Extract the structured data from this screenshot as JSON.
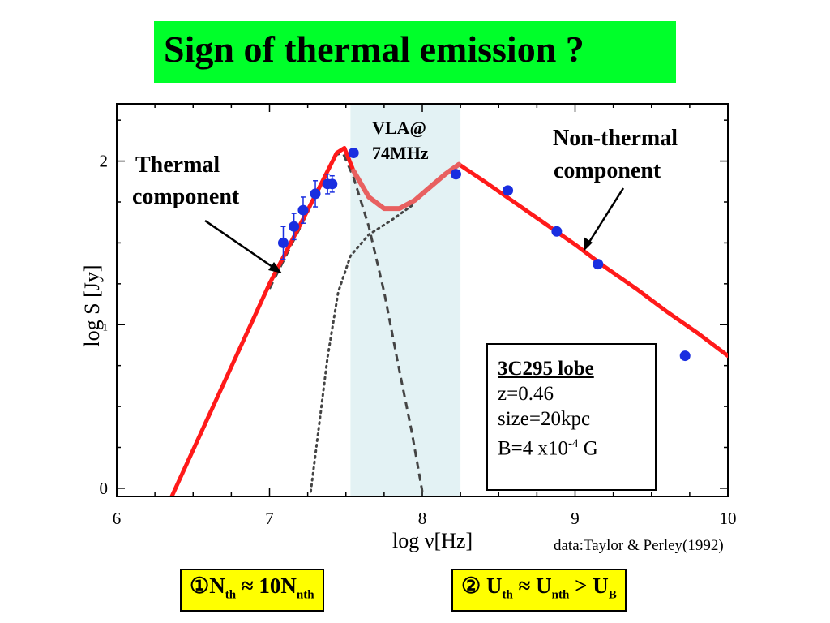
{
  "title": "Sign of thermal emission ?",
  "chart_data": {
    "type": "line",
    "xlabel": "log ν[Hz]",
    "ylabel": "log S [Jy]",
    "xlim": [
      6,
      10
    ],
    "ylim": [
      -0.05,
      2.35
    ],
    "xticks": [
      "6",
      "7",
      "8",
      "9",
      "10"
    ],
    "yticks": [
      "0",
      "1",
      "2"
    ],
    "shaded_band": {
      "x": [
        7.53,
        8.25
      ],
      "label_line1": "VLA@",
      "label_line2": "74MHz",
      "color": "#e3f2f4"
    },
    "series": [
      {
        "style": "solid",
        "color": "#ff1a1a",
        "x": [
          6.36,
          7.0,
          7.3,
          7.44,
          7.49,
          7.55,
          7.65,
          7.75,
          7.85,
          7.95,
          8.05,
          8.15,
          8.24,
          8.4,
          8.6,
          8.8,
          9.0,
          9.2,
          9.4,
          9.6,
          9.8,
          10.0
        ],
        "y": [
          -0.05,
          1.25,
          1.79,
          2.05,
          2.08,
          1.94,
          1.78,
          1.71,
          1.71,
          1.76,
          1.84,
          1.92,
          1.98,
          1.88,
          1.75,
          1.62,
          1.49,
          1.35,
          1.22,
          1.08,
          0.95,
          0.81
        ]
      },
      {
        "style": "dashed",
        "color": "#444444",
        "x": [
          7.0,
          7.3,
          7.44,
          7.48,
          7.55,
          7.65,
          7.75,
          7.85,
          7.93,
          8.0
        ],
        "y": [
          1.22,
          1.78,
          2.04,
          2.05,
          1.9,
          1.6,
          1.2,
          0.72,
          0.35,
          -0.02
        ]
      },
      {
        "style": "dotted",
        "color": "#444444",
        "x": [
          7.27,
          7.32,
          7.38,
          7.45,
          7.53,
          7.65,
          7.8,
          7.95
        ],
        "y": [
          -0.02,
          0.35,
          0.8,
          1.2,
          1.42,
          1.55,
          1.64,
          1.74
        ]
      }
    ],
    "points": {
      "color": "#1a2ee0",
      "x": [
        7.09,
        7.16,
        7.22,
        7.3,
        7.38,
        7.41,
        7.55,
        8.22,
        8.56,
        8.88,
        9.15,
        9.72
      ],
      "y": [
        1.5,
        1.6,
        1.7,
        1.8,
        1.86,
        1.86,
        2.05,
        1.92,
        1.82,
        1.57,
        1.37,
        0.81
      ],
      "err": [
        0.1,
        0.08,
        0.08,
        0.08,
        0.06,
        0.05,
        0,
        0,
        0,
        0,
        0,
        0
      ]
    }
  },
  "annotations": {
    "thermal_line1": "Thermal",
    "thermal_line2": "component",
    "nonthermal_line1": "Non-thermal",
    "nonthermal_line2": "component"
  },
  "info": {
    "heading": "3C295 lobe",
    "z": "z=0.46",
    "size": "size=20kpc",
    "b_prefix": "B=4 x10",
    "b_exp": "-4",
    "b_unit": " G"
  },
  "credit": "data:Taylor & Perley(1992)",
  "formula1": {
    "num": "①",
    "N1": "N",
    "sub1": "th",
    "op": " ≈ 10",
    "N2": "N",
    "sub2": "nth"
  },
  "formula2": {
    "num": "② ",
    "U1": "U",
    "sub1": "th",
    "op1": " ≈ ",
    "U2": "U",
    "sub2": "nth",
    "op2": " > ",
    "U3": "U",
    "sub3": "B"
  }
}
